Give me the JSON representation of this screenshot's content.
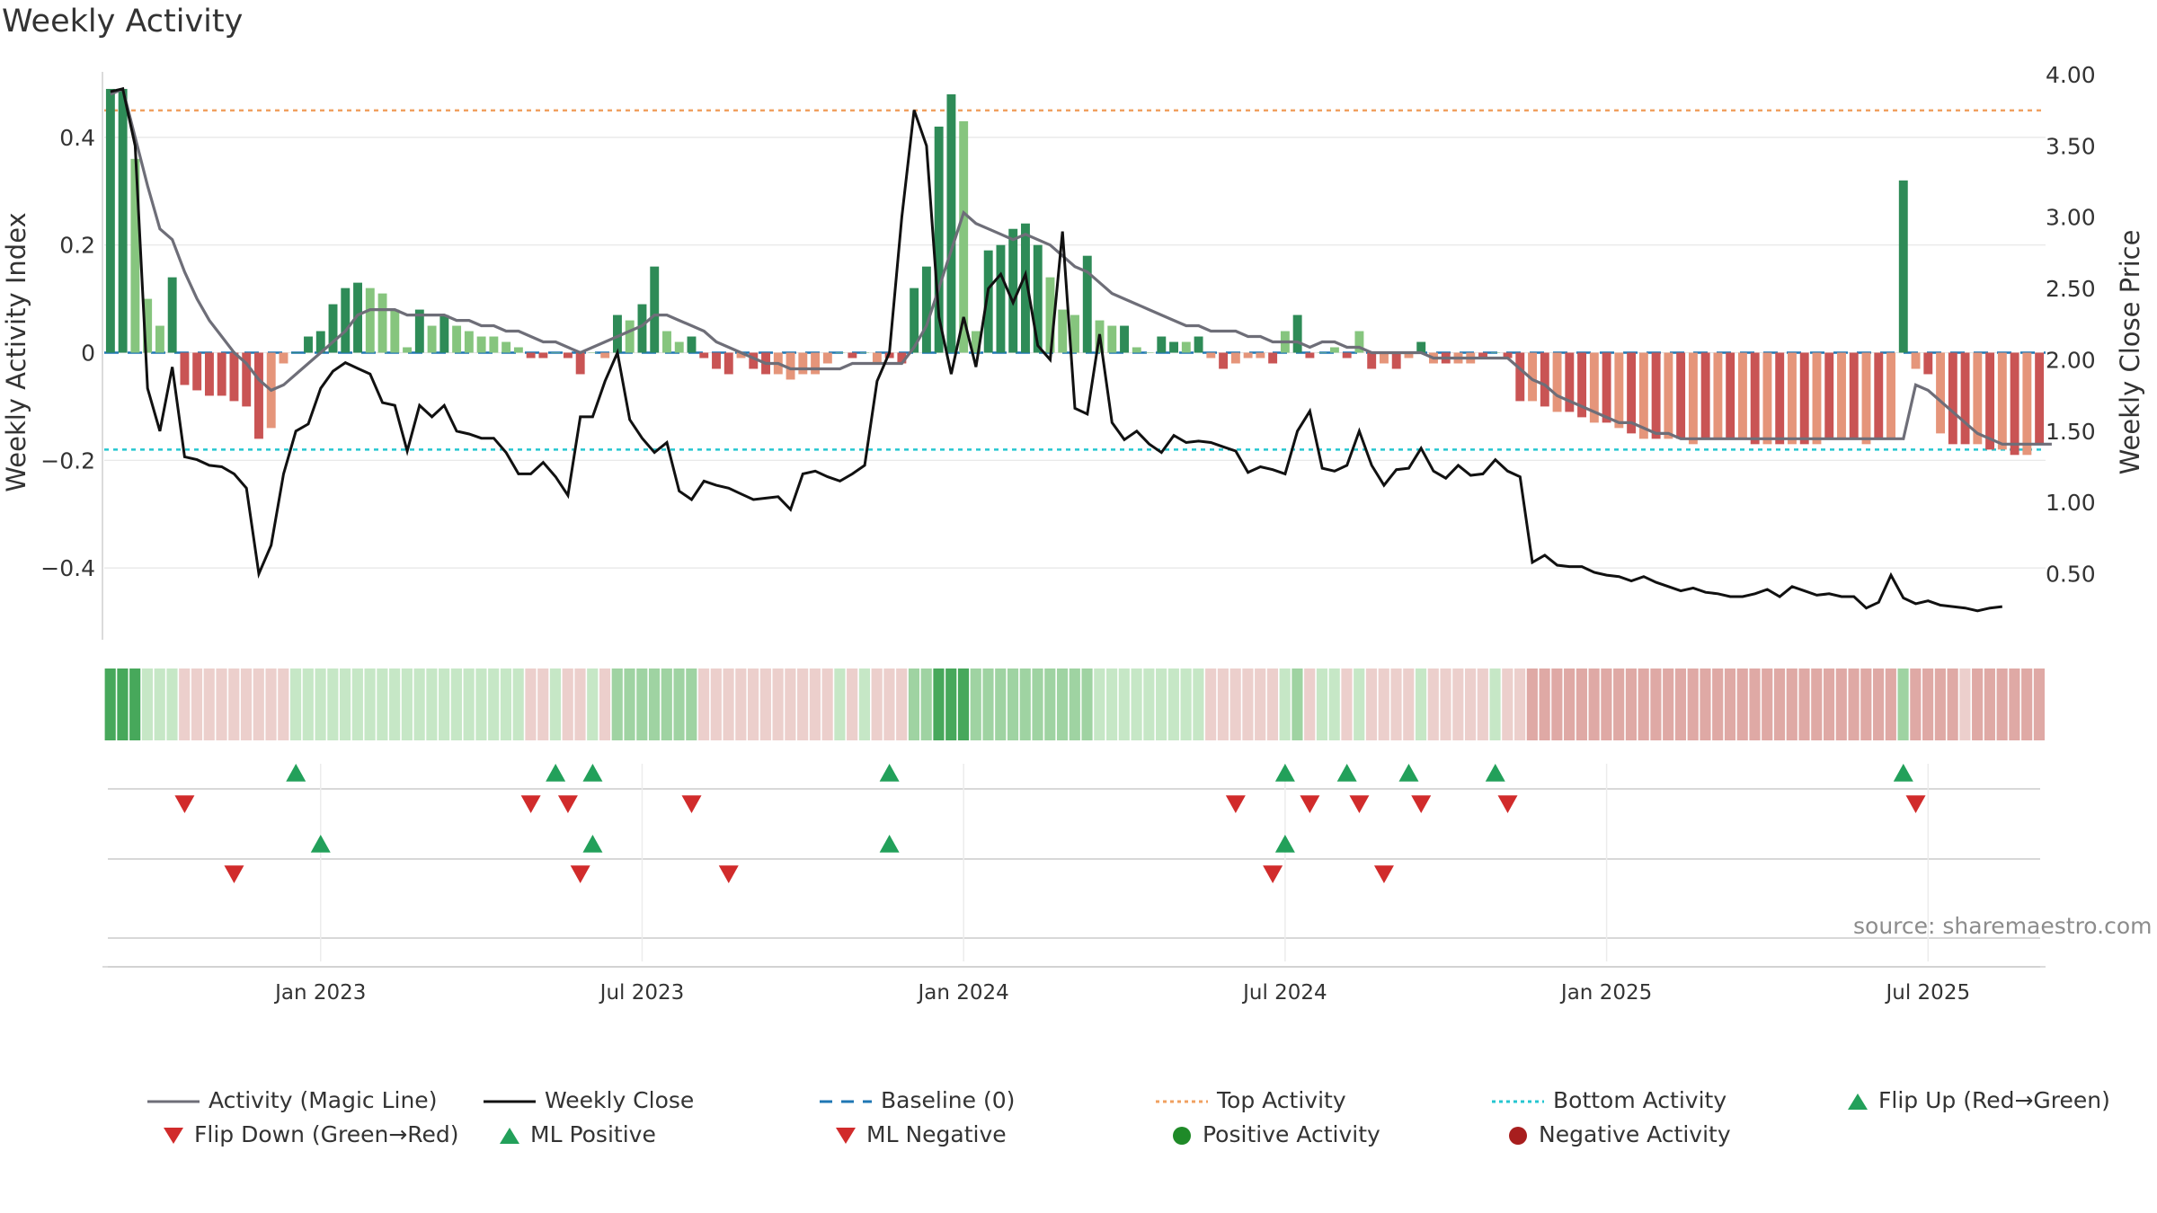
{
  "title": "Weekly Activity",
  "source": "source: sharemaestro.com",
  "colors": {
    "dark_green": "#2e8b57",
    "light_green": "#86c57e",
    "dark_red": "#c95454",
    "light_red": "#e5957a",
    "magic_line": "#6e6e78",
    "close_line": "#111111",
    "baseline": "#1f77b4",
    "top_activity": "#f0a060",
    "bottom_activity": "#26c6d0",
    "marker_green": "#22a05a",
    "marker_red": "#d12b2b",
    "grid": "#e6e6e6"
  },
  "axes": {
    "ylabel_left": "Weekly Activity Index",
    "ylabel_right": "Weekly Close Price",
    "yticks_left": [
      0.4,
      0.2,
      0,
      -0.2,
      -0.4
    ],
    "yticks_left_labels": [
      "0.4",
      "0.2",
      "0",
      "−0.2",
      "−0.4"
    ],
    "yticks_right": [
      4.0,
      3.5,
      3.0,
      2.5,
      2.0,
      1.5,
      1.0,
      0.5
    ],
    "yticks_right_labels": [
      "4.00",
      "3.50",
      "3.00",
      "2.50",
      "2.00",
      "1.50",
      "1.00",
      "0.50"
    ],
    "xticks": [
      "Jan 2023",
      "Jul 2023",
      "Jan 2024",
      "Jul 2024",
      "Jan 2025",
      "Jul 2025"
    ],
    "ylim_left": [
      -0.53,
      0.53
    ],
    "ylim_right": [
      0.05,
      4.05
    ]
  },
  "legend": [
    {
      "label": "Activity (Magic Line)",
      "icon": "solid-gray-line"
    },
    {
      "label": "Weekly Close",
      "icon": "solid-black-line"
    },
    {
      "label": "Baseline (0)",
      "icon": "dashed-blue-line"
    },
    {
      "label": "Top Activity",
      "icon": "dotted-orange-line"
    },
    {
      "label": "Bottom Activity",
      "icon": "dotted-cyan-line"
    },
    {
      "label": "Flip Up (Red→Green)",
      "icon": "green-triangle-up"
    },
    {
      "label": "Flip Down (Green→Red)",
      "icon": "red-triangle-down"
    },
    {
      "label": "ML Positive",
      "icon": "green-triangle-up"
    },
    {
      "label": "ML Negative",
      "icon": "red-triangle-down"
    },
    {
      "label": "Positive Activity",
      "icon": "green-circle"
    },
    {
      "label": "Negative Activity",
      "icon": "red-circle"
    }
  ],
  "chart_data": {
    "type": "bar",
    "title": "Weekly Activity",
    "x_start": "2022-09-05",
    "x_step_days": 7,
    "top_activity": 0.45,
    "bottom_activity": -0.18,
    "activity": [
      0.49,
      0.49,
      0.36,
      0.1,
      0.05,
      0.14,
      -0.06,
      -0.07,
      -0.08,
      -0.08,
      -0.09,
      -0.1,
      -0.16,
      -0.14,
      -0.02,
      0,
      0.03,
      0.04,
      0.09,
      0.12,
      0.13,
      0.12,
      0.11,
      0.08,
      0.01,
      0.08,
      0.05,
      0.07,
      0.05,
      0.04,
      0.03,
      0.03,
      0.02,
      0.01,
      -0.01,
      -0.01,
      0,
      -0.01,
      -0.04,
      0,
      -0.01,
      0.07,
      0.06,
      0.09,
      0.16,
      0.04,
      0.02,
      0.03,
      -0.01,
      -0.03,
      -0.04,
      -0.01,
      -0.03,
      -0.04,
      -0.04,
      -0.05,
      -0.04,
      -0.04,
      -0.02,
      0,
      -0.01,
      0,
      -0.02,
      -0.01,
      -0.02,
      0.12,
      0.16,
      0.42,
      0.48,
      0.43,
      0.04,
      0.19,
      0.2,
      0.23,
      0.24,
      0.2,
      0.14,
      0.08,
      0.07,
      0.18,
      0.06,
      0.05,
      0.05,
      0.01,
      0,
      0.03,
      0.02,
      0.02,
      0.03,
      -0.01,
      -0.03,
      -0.02,
      -0.01,
      -0.01,
      -0.02,
      0.04,
      0.07,
      -0.01,
      0,
      0.01,
      -0.01,
      0.04,
      -0.03,
      -0.02,
      -0.03,
      -0.01,
      0.02,
      -0.02,
      -0.02,
      -0.02,
      -0.02,
      -0.01,
      0,
      -0.01,
      -0.09,
      -0.09,
      -0.1,
      -0.11,
      -0.11,
      -0.12,
      -0.13,
      -0.13,
      -0.14,
      -0.15,
      -0.16,
      -0.16,
      -0.16,
      -0.16,
      -0.17,
      -0.16,
      -0.16,
      -0.16,
      -0.16,
      -0.17,
      -0.17,
      -0.17,
      -0.17,
      -0.17,
      -0.17,
      -0.16,
      -0.16,
      -0.16,
      -0.17,
      -0.16,
      -0.16,
      0.32,
      -0.03,
      -0.04,
      -0.15,
      -0.17,
      -0.17,
      -0.17,
      -0.18,
      -0.18,
      -0.19,
      -0.19,
      -0.17
    ],
    "activity_strong": [
      1,
      1,
      0,
      0,
      0,
      1,
      1,
      1,
      1,
      1,
      1,
      1,
      1,
      0,
      0,
      1,
      1,
      1,
      1,
      1,
      1,
      0,
      0,
      0,
      0,
      1,
      0,
      1,
      0,
      0,
      0,
      0,
      0,
      0,
      1,
      1,
      0,
      1,
      1,
      0,
      0,
      1,
      0,
      1,
      1,
      0,
      0,
      1,
      1,
      1,
      1,
      0,
      1,
      1,
      0,
      0,
      0,
      0,
      0,
      0,
      1,
      0,
      0,
      1,
      1,
      1,
      1,
      1,
      1,
      0,
      0,
      1,
      1,
      1,
      1,
      1,
      0,
      0,
      0,
      1,
      0,
      0,
      1,
      0,
      0,
      1,
      1,
      0,
      1,
      0,
      1,
      0,
      0,
      0,
      1,
      0,
      1,
      1,
      0,
      0,
      1,
      0,
      1,
      0,
      1,
      0,
      1,
      0,
      1,
      0,
      0,
      1,
      0,
      1,
      1,
      0,
      1,
      0,
      1,
      1,
      0,
      1,
      0,
      1,
      0,
      1,
      0,
      1,
      0,
      1,
      0,
      1,
      0,
      1,
      0,
      1,
      0,
      1,
      0,
      1,
      0,
      1,
      0,
      1,
      0,
      1,
      0,
      1,
      0,
      1,
      1,
      0,
      1,
      0,
      1,
      0,
      1,
      0,
      1,
      0,
      0
    ],
    "magic_line": [
      0.48,
      0.49,
      0.4,
      0.31,
      0.23,
      0.21,
      0.15,
      0.1,
      0.06,
      0.03,
      0,
      -0.02,
      -0.05,
      -0.07,
      -0.06,
      -0.04,
      -0.02,
      0,
      0.02,
      0.04,
      0.07,
      0.08,
      0.08,
      0.08,
      0.07,
      0.07,
      0.07,
      0.07,
      0.06,
      0.06,
      0.05,
      0.05,
      0.04,
      0.04,
      0.03,
      0.02,
      0.02,
      0.01,
      0,
      0.01,
      0.02,
      0.03,
      0.04,
      0.05,
      0.07,
      0.07,
      0.06,
      0.05,
      0.04,
      0.02,
      0.01,
      0,
      -0.01,
      -0.02,
      -0.02,
      -0.03,
      -0.03,
      -0.03,
      -0.03,
      -0.03,
      -0.02,
      -0.02,
      -0.02,
      -0.02,
      -0.02,
      0.01,
      0.05,
      0.12,
      0.19,
      0.26,
      0.24,
      0.23,
      0.22,
      0.21,
      0.22,
      0.21,
      0.2,
      0.18,
      0.16,
      0.15,
      0.13,
      0.11,
      0.1,
      0.09,
      0.08,
      0.07,
      0.06,
      0.05,
      0.05,
      0.04,
      0.04,
      0.04,
      0.03,
      0.03,
      0.02,
      0.02,
      0.02,
      0.01,
      0.02,
      0.02,
      0.01,
      0.01,
      0,
      0,
      0,
      0,
      0,
      -0.01,
      -0.01,
      -0.01,
      -0.01,
      -0.01,
      -0.01,
      -0.01,
      -0.03,
      -0.05,
      -0.06,
      -0.08,
      -0.09,
      -0.1,
      -0.11,
      -0.12,
      -0.13,
      -0.13,
      -0.14,
      -0.15,
      -0.15,
      -0.16,
      -0.16,
      -0.16,
      -0.16,
      -0.16,
      -0.16,
      -0.16,
      -0.16,
      -0.16,
      -0.16,
      -0.16,
      -0.16,
      -0.16,
      -0.16,
      -0.16,
      -0.16,
      -0.16,
      -0.16,
      -0.16,
      -0.06,
      -0.07,
      -0.09,
      -0.11,
      -0.13,
      -0.15,
      -0.16,
      -0.17,
      -0.17,
      -0.17,
      -0.17,
      -0.17
    ],
    "close": [
      3.88,
      3.9,
      3.5,
      1.8,
      1.5,
      1.95,
      1.32,
      1.3,
      1.26,
      1.25,
      1.2,
      1.1,
      0.5,
      0.7,
      1.2,
      1.5,
      1.55,
      1.8,
      1.92,
      1.98,
      1.94,
      1.9,
      1.7,
      1.68,
      1.36,
      1.68,
      1.6,
      1.68,
      1.5,
      1.48,
      1.45,
      1.45,
      1.35,
      1.2,
      1.2,
      1.28,
      1.18,
      1.05,
      1.6,
      1.6,
      1.85,
      2.05,
      1.58,
      1.45,
      1.35,
      1.42,
      1.08,
      1.02,
      1.15,
      1.12,
      1.1,
      1.06,
      1.02,
      1.03,
      1.04,
      0.95,
      1.2,
      1.22,
      1.18,
      1.15,
      1.2,
      1.26,
      1.85,
      2.05,
      3.0,
      3.75,
      3.5,
      2.3,
      1.9,
      2.3,
      1.95,
      2.5,
      2.6,
      2.4,
      2.6,
      2.1,
      2.0,
      2.9,
      1.66,
      1.62,
      2.18,
      1.56,
      1.44,
      1.5,
      1.41,
      1.35,
      1.47,
      1.42,
      1.43,
      1.42,
      1.39,
      1.36,
      1.21,
      1.25,
      1.23,
      1.2,
      1.5,
      1.64,
      1.24,
      1.22,
      1.26,
      1.5,
      1.26,
      1.12,
      1.23,
      1.24,
      1.38,
      1.22,
      1.17,
      1.26,
      1.19,
      1.2,
      1.3,
      1.22,
      1.18,
      0.58,
      0.63,
      0.56,
      0.55,
      0.55,
      0.51,
      0.49,
      0.48,
      0.45,
      0.48,
      0.44,
      0.41,
      0.38,
      0.4,
      0.37,
      0.36,
      0.34,
      0.34,
      0.36,
      0.39,
      0.34,
      0.41,
      0.38,
      0.35,
      0.36,
      0.34,
      0.34,
      0.26,
      0.3,
      0.49,
      0.33,
      0.29,
      0.31,
      0.28,
      0.27,
      0.26,
      0.24,
      0.26,
      0.27
    ],
    "intensity": [
      3,
      3,
      3,
      1,
      1,
      1,
      1,
      1,
      1,
      1,
      1,
      1,
      1,
      1,
      1,
      1,
      1,
      1,
      1,
      1,
      1,
      1,
      1,
      1,
      1,
      1,
      1,
      1,
      1,
      1,
      1,
      1,
      1,
      1,
      1,
      1,
      1,
      1,
      1,
      1,
      1,
      2,
      2,
      2,
      2,
      2,
      2,
      2,
      1,
      1,
      1,
      1,
      1,
      1,
      1,
      1,
      1,
      1,
      1,
      1,
      1,
      1,
      1,
      1,
      1,
      2,
      2,
      3,
      3,
      3,
      2,
      2,
      2,
      2,
      2,
      2,
      2,
      2,
      2,
      2,
      1,
      1,
      1,
      1,
      1,
      1,
      1,
      1,
      1,
      1,
      1,
      1,
      1,
      1,
      1,
      1,
      2,
      1,
      1,
      1,
      1,
      1,
      1,
      1,
      1,
      1,
      1,
      1,
      1,
      1,
      1,
      1,
      1,
      1,
      1,
      2,
      2,
      2,
      2,
      2,
      2,
      2,
      2,
      2,
      2,
      2,
      2,
      2,
      2,
      2,
      2,
      2,
      2,
      2,
      2,
      2,
      2,
      2,
      2,
      2,
      2,
      2,
      2,
      2,
      2,
      2,
      2,
      2,
      2,
      2,
      3,
      2,
      2,
      2,
      2,
      2,
      2,
      2,
      2,
      2,
      2
    ],
    "flip_up": [
      15,
      36,
      39,
      63,
      95,
      100,
      105,
      112,
      145
    ],
    "flip_down": [
      6,
      34,
      37,
      47,
      91,
      97,
      101,
      106,
      113,
      146
    ],
    "ml_positive": [
      17,
      39,
      63,
      95
    ],
    "ml_negative": [
      10,
      38,
      50,
      94,
      103
    ],
    "xtick_index": [
      17,
      43,
      69,
      95,
      121,
      147
    ]
  }
}
